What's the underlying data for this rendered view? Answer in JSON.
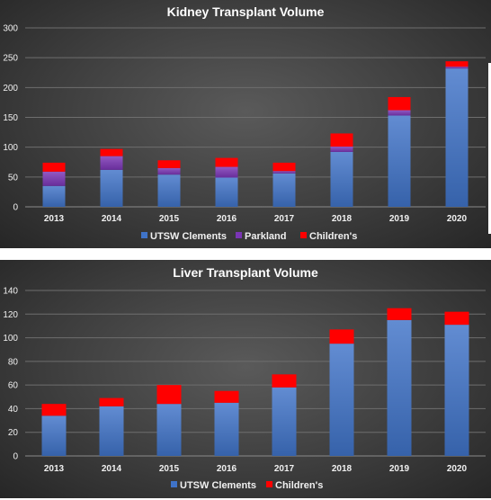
{
  "colors": {
    "utsw": "#3f73c8",
    "parkland": "#7a35b5",
    "childrens": "#ff0000"
  },
  "chart_data": [
    {
      "type": "bar",
      "stacked": true,
      "title": "Kidney Transplant Volume",
      "categories": [
        "2013",
        "2014",
        "2015",
        "2016",
        "2017",
        "2018",
        "2019",
        "2020"
      ],
      "series": [
        {
          "name": "UTSW Clements",
          "color_key": "utsw",
          "values": [
            35,
            62,
            54,
            49,
            56,
            92,
            153,
            232
          ]
        },
        {
          "name": "Parkland",
          "color_key": "parkland",
          "values": [
            24,
            23,
            11,
            18,
            4,
            9,
            9,
            3
          ]
        },
        {
          "name": "Children's",
          "color_key": "childrens",
          "values": [
            15,
            12,
            13,
            15,
            14,
            22,
            22,
            9
          ]
        }
      ],
      "ylim": [
        0,
        300
      ],
      "yticks": [
        "0",
        "50",
        "100",
        "150",
        "200",
        "250",
        "300"
      ],
      "grid": true,
      "legend": "bottom"
    },
    {
      "type": "bar",
      "stacked": true,
      "title": "Liver Transplant Volume",
      "categories": [
        "2013",
        "2014",
        "2015",
        "2016",
        "2017",
        "2018",
        "2019",
        "2020"
      ],
      "series": [
        {
          "name": "UTSW Clements",
          "color_key": "utsw",
          "values": [
            34,
            42,
            44,
            45,
            58,
            95,
            115,
            111
          ]
        },
        {
          "name": "Children's",
          "color_key": "childrens",
          "values": [
            10,
            7,
            16,
            10,
            11,
            12,
            10,
            11
          ]
        }
      ],
      "ylim": [
        0,
        140
      ],
      "yticks": [
        "0",
        "20",
        "40",
        "60",
        "80",
        "100",
        "120",
        "140"
      ],
      "grid": true,
      "legend": "bottom"
    }
  ]
}
